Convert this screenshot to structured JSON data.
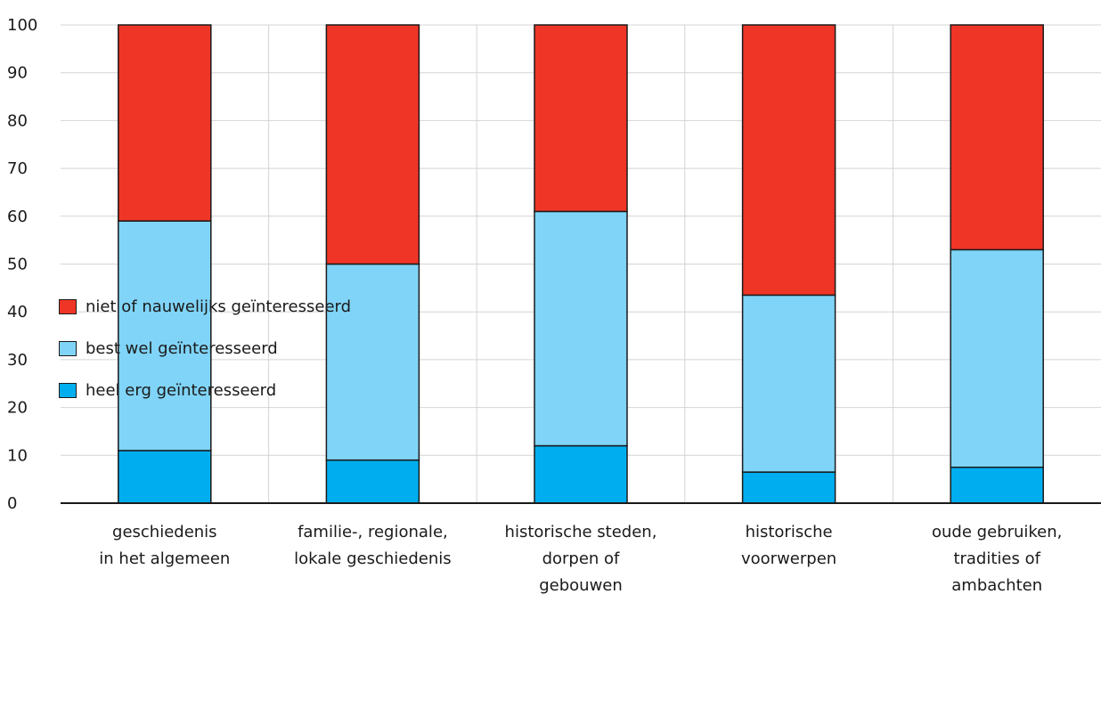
{
  "chart_data": {
    "type": "bar",
    "stacked": true,
    "categories": [
      [
        "geschiedenis",
        "in het algemeen"
      ],
      [
        "familie-, regionale,",
        "lokale geschiedenis"
      ],
      [
        "historische steden,",
        "dorpen of",
        "gebouwen"
      ],
      [
        "historische",
        "voorwerpen"
      ],
      [
        "oude gebruiken,",
        "tradities of",
        "ambachten"
      ]
    ],
    "series": [
      {
        "name": "heel erg geïnteresseerd",
        "color": "#00aeef",
        "values": [
          11,
          9,
          12,
          6.5,
          7.5
        ]
      },
      {
        "name": "best wel geïnteresseerd",
        "color": "#80d4f7",
        "values": [
          48,
          41,
          49,
          37,
          45.5
        ]
      },
      {
        "name": "niet of nauwelijks geïnteresseerd",
        "color": "#ef3526",
        "values": [
          41,
          50,
          39,
          56.5,
          47
        ]
      }
    ],
    "yticks": [
      "0",
      "10",
      "20",
      "30",
      "40",
      "50",
      "60",
      "70",
      "80",
      "90",
      "100"
    ],
    "ylim": [
      0,
      100
    ],
    "grid": true,
    "legend_position": "bottom-left",
    "title": "",
    "xlabel": "",
    "ylabel": ""
  }
}
